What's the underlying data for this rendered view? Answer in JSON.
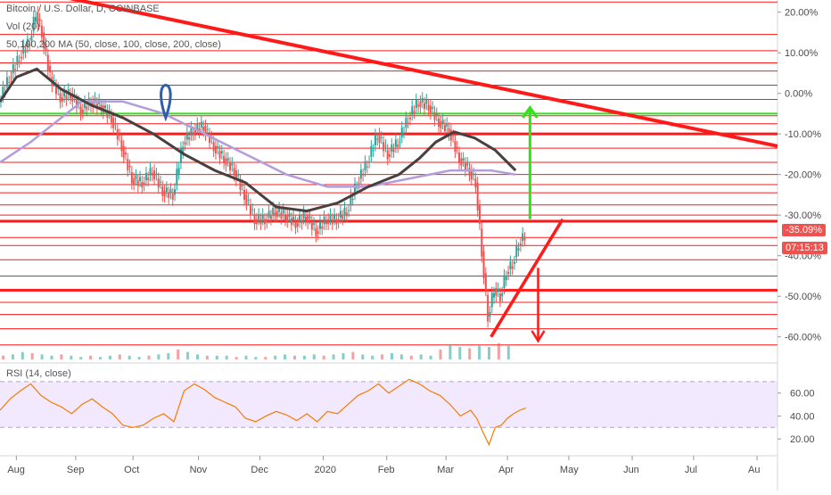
{
  "chart_data": {
    "type": "line",
    "title": "Bitcoin / U.S. Dollar, D, COINBASE",
    "indicators": {
      "volume": "Vol (20)",
      "moving_averages": "50,100,200 MA (50, close, 100, close, 200, close)",
      "rsi": "RSI (14, close)"
    },
    "x_ticks": [
      "Aug",
      "Sep",
      "Oct",
      "Nov",
      "Dec",
      "2020",
      "Feb",
      "Mar",
      "Apr",
      "May",
      "Jun",
      "Jul",
      "Au"
    ],
    "y_ticks": [
      "20.00%",
      "10.00%",
      "0.00%",
      "-10.00%",
      "-20.00%",
      "-30.00%",
      "-40.00%",
      "-50.00%",
      "-60.00%"
    ],
    "y_scale": "percent",
    "ylim": [
      -66,
      23
    ],
    "rsi_ticks": [
      "60.00",
      "40.00",
      "20.00"
    ],
    "rsi_range": [
      30,
      70
    ],
    "last_value_label": "-35.09%",
    "countdown_label": "07:15:13",
    "colors": {
      "candle_up": "#26a69a",
      "candle_down": "#ef5350",
      "ma_dark": "#4a3f3f",
      "ma_purple": "#b39ddb",
      "trendline": "#ff1a1a",
      "horizontal_levels": "#ff1a1a",
      "support_green": "#33e01a",
      "rsi_line": "#f57c00",
      "rsi_band": "#f3e9ff",
      "value_tag": "#ef5350"
    },
    "price_series_pct": [
      [
        0,
        -2
      ],
      [
        5,
        4
      ],
      [
        10,
        9
      ],
      [
        15,
        13
      ],
      [
        18,
        20
      ],
      [
        21,
        15
      ],
      [
        25,
        4
      ],
      [
        30,
        -1
      ],
      [
        35,
        0
      ],
      [
        40,
        -4
      ],
      [
        45,
        -2
      ],
      [
        50,
        -3
      ],
      [
        55,
        -6
      ],
      [
        60,
        -13
      ],
      [
        65,
        -21
      ],
      [
        70,
        -22
      ],
      [
        75,
        -19
      ],
      [
        80,
        -24
      ],
      [
        85,
        -25
      ],
      [
        90,
        -12
      ],
      [
        95,
        -9
      ],
      [
        100,
        -8
      ],
      [
        105,
        -13
      ],
      [
        110,
        -16
      ],
      [
        115,
        -19
      ],
      [
        120,
        -25
      ],
      [
        125,
        -31
      ],
      [
        130,
        -31
      ],
      [
        135,
        -29
      ],
      [
        140,
        -30
      ],
      [
        145,
        -32
      ],
      [
        150,
        -30
      ],
      [
        155,
        -34
      ],
      [
        160,
        -31
      ],
      [
        165,
        -31
      ],
      [
        170,
        -29
      ],
      [
        175,
        -22
      ],
      [
        180,
        -17
      ],
      [
        185,
        -10
      ],
      [
        190,
        -15
      ],
      [
        195,
        -12
      ],
      [
        200,
        -6
      ],
      [
        205,
        -2
      ],
      [
        210,
        -3
      ],
      [
        215,
        -7
      ],
      [
        220,
        -9
      ],
      [
        225,
        -16
      ],
      [
        230,
        -19
      ],
      [
        233,
        -22
      ],
      [
        236,
        -39
      ],
      [
        239,
        -55
      ],
      [
        242,
        -48
      ],
      [
        245,
        -50
      ],
      [
        248,
        -44
      ],
      [
        251,
        -42
      ],
      [
        254,
        -37
      ],
      [
        257,
        -35
      ]
    ],
    "ma_dark_pct": [
      [
        0,
        -2
      ],
      [
        8,
        4
      ],
      [
        18,
        6
      ],
      [
        30,
        1
      ],
      [
        45,
        -3
      ],
      [
        60,
        -6
      ],
      [
        75,
        -10
      ],
      [
        90,
        -15
      ],
      [
        105,
        -19
      ],
      [
        120,
        -22
      ],
      [
        135,
        -28
      ],
      [
        150,
        -29
      ],
      [
        165,
        -27
      ],
      [
        180,
        -23
      ],
      [
        195,
        -20
      ],
      [
        205,
        -16
      ],
      [
        213,
        -12
      ],
      [
        222,
        -9.5
      ],
      [
        232,
        -11
      ],
      [
        242,
        -14
      ],
      [
        252,
        -19
      ]
    ],
    "ma_purple_pct": [
      [
        0,
        -17
      ],
      [
        15,
        -12
      ],
      [
        40,
        -2
      ],
      [
        60,
        -2
      ],
      [
        80,
        -5
      ],
      [
        100,
        -10
      ],
      [
        120,
        -15
      ],
      [
        140,
        -20
      ],
      [
        160,
        -23
      ],
      [
        180,
        -23
      ],
      [
        200,
        -21
      ],
      [
        220,
        -19
      ],
      [
        240,
        -19
      ],
      [
        252,
        -20
      ]
    ],
    "horizontal_levels_pct": [
      22.5,
      14.5,
      10.5,
      7.5,
      5.5,
      2,
      -1.5,
      -5.5,
      -7.5,
      -10,
      -13.5,
      -17,
      -20,
      -22.5,
      -24.5,
      -27.5,
      -30,
      -31.5,
      -35.5,
      -37.5,
      -41,
      -45,
      -48.5,
      -51.5,
      -54.5,
      -58,
      -62
    ],
    "level_green_pct": -5,
    "trendline_pct": [
      [
        0,
        27
      ],
      [
        380,
        -13
      ]
    ],
    "rsi_series": [
      [
        0,
        45
      ],
      [
        5,
        55
      ],
      [
        10,
        62
      ],
      [
        15,
        68
      ],
      [
        20,
        58
      ],
      [
        25,
        52
      ],
      [
        30,
        48
      ],
      [
        35,
        42
      ],
      [
        40,
        50
      ],
      [
        45,
        55
      ],
      [
        50,
        48
      ],
      [
        55,
        42
      ],
      [
        60,
        32
      ],
      [
        65,
        30
      ],
      [
        70,
        32
      ],
      [
        75,
        38
      ],
      [
        80,
        42
      ],
      [
        85,
        35
      ],
      [
        90,
        62
      ],
      [
        95,
        68
      ],
      [
        100,
        63
      ],
      [
        105,
        56
      ],
      [
        110,
        52
      ],
      [
        115,
        48
      ],
      [
        120,
        38
      ],
      [
        125,
        35
      ],
      [
        130,
        40
      ],
      [
        135,
        44
      ],
      [
        140,
        41
      ],
      [
        145,
        36
      ],
      [
        150,
        42
      ],
      [
        155,
        35
      ],
      [
        160,
        44
      ],
      [
        165,
        42
      ],
      [
        170,
        50
      ],
      [
        175,
        58
      ],
      [
        180,
        62
      ],
      [
        185,
        68
      ],
      [
        190,
        60
      ],
      [
        195,
        66
      ],
      [
        200,
        72
      ],
      [
        205,
        68
      ],
      [
        210,
        62
      ],
      [
        215,
        58
      ],
      [
        220,
        50
      ],
      [
        225,
        40
      ],
      [
        230,
        45
      ],
      [
        233,
        38
      ],
      [
        236,
        26
      ],
      [
        239,
        15
      ],
      [
        242,
        30
      ],
      [
        245,
        32
      ],
      [
        248,
        38
      ],
      [
        251,
        42
      ],
      [
        254,
        45
      ],
      [
        257,
        47
      ]
    ],
    "volume_series": [
      3,
      4,
      6,
      5,
      4,
      3,
      4,
      3,
      2,
      3,
      2,
      3,
      4,
      3,
      2,
      3,
      4,
      5,
      8,
      6,
      4,
      3,
      3,
      3,
      2,
      3,
      2,
      2,
      3,
      4,
      3,
      3,
      4,
      3,
      4,
      5,
      6,
      4,
      3,
      4,
      5,
      4,
      3,
      4,
      3,
      8,
      12,
      10,
      9,
      11,
      10,
      13,
      11
    ]
  }
}
